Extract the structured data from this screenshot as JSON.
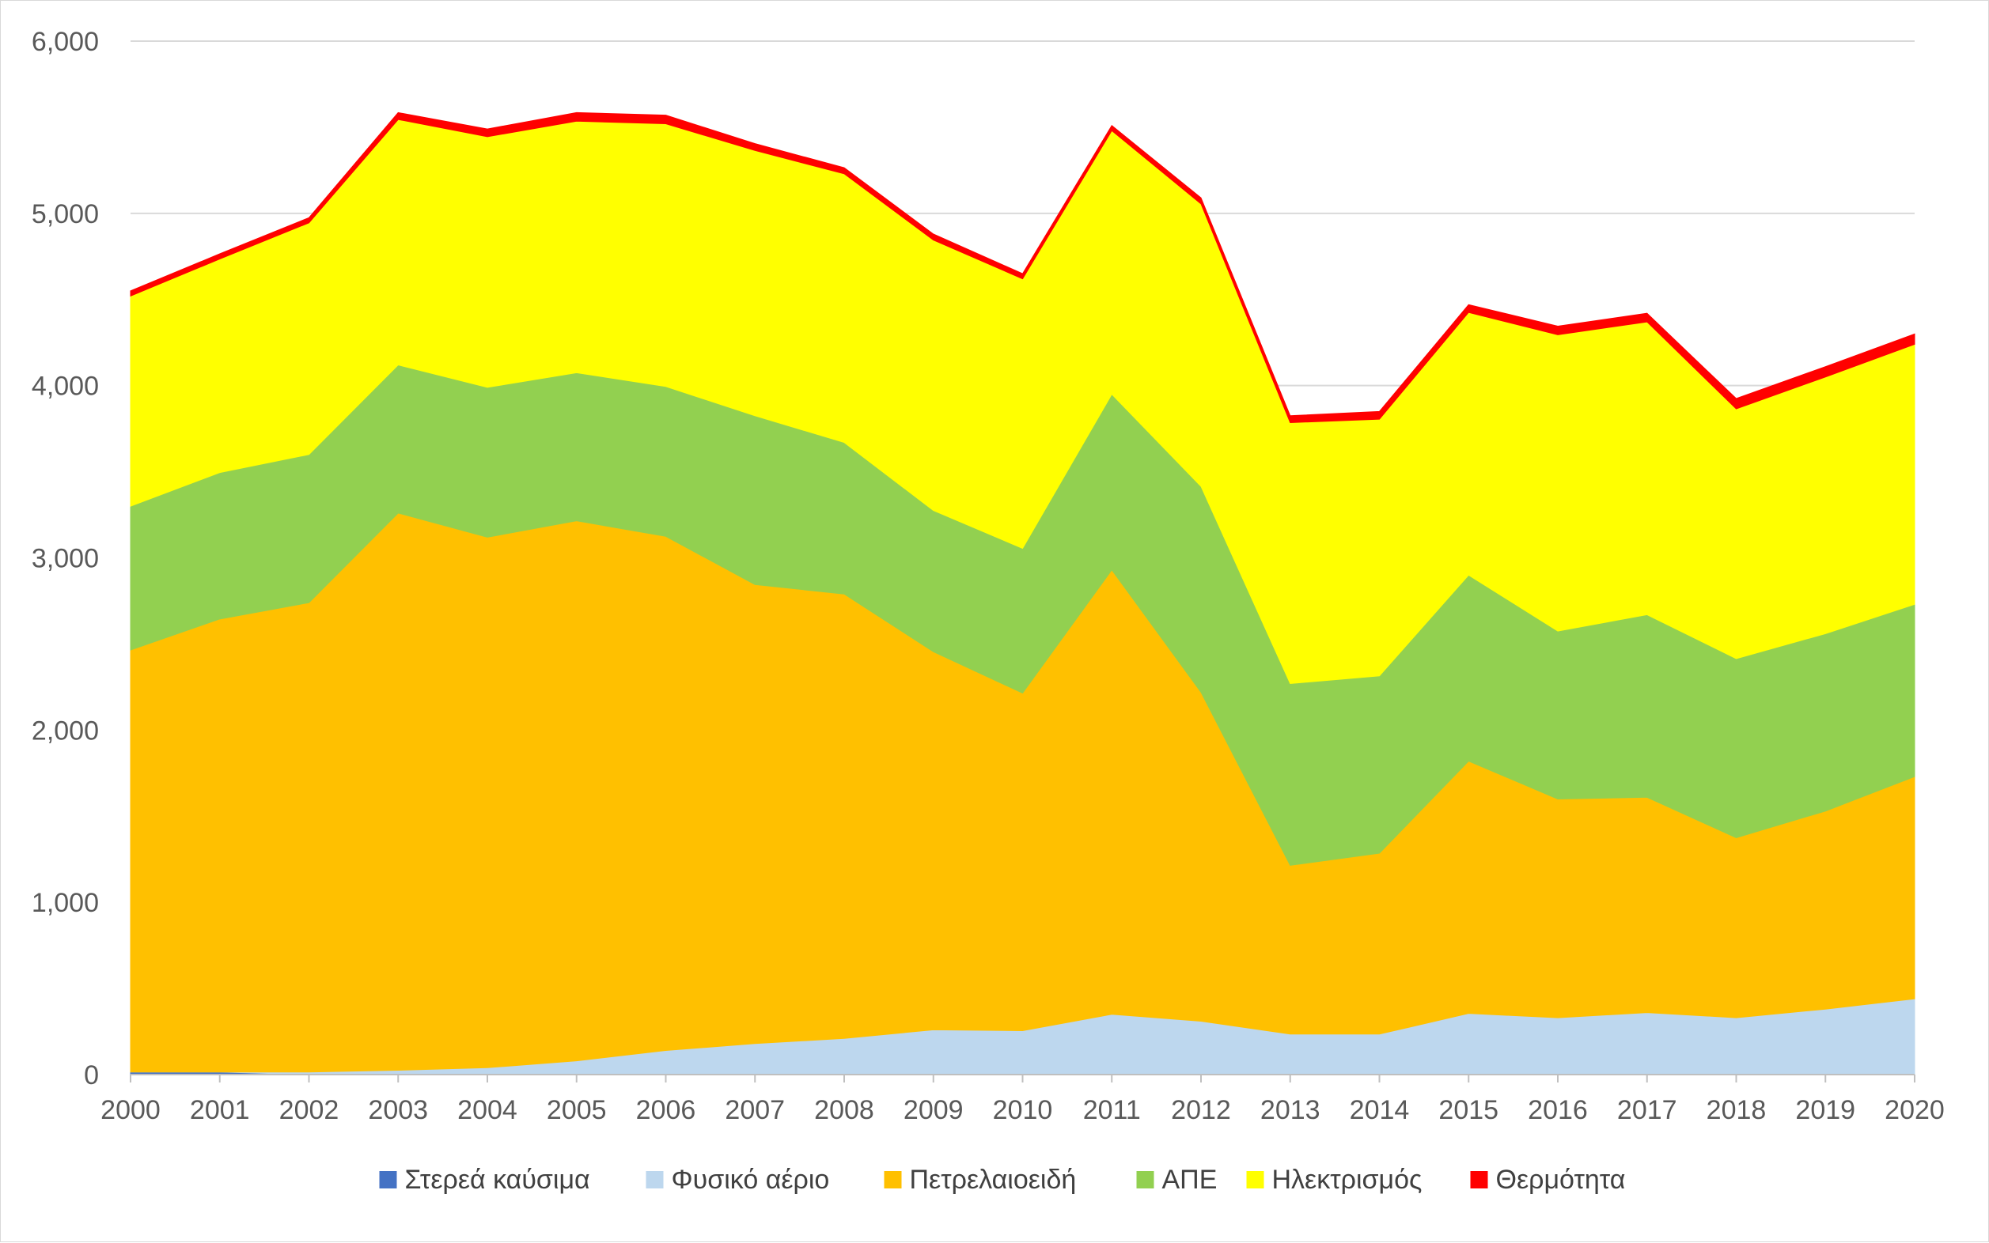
{
  "chart_data": {
    "type": "area",
    "stacked": true,
    "x": [
      "2000",
      "2001",
      "2002",
      "2003",
      "2004",
      "2005",
      "2006",
      "2007",
      "2008",
      "2009",
      "2010",
      "2011",
      "2012",
      "2013",
      "2014",
      "2015",
      "2016",
      "2017",
      "2018",
      "2019",
      "2020"
    ],
    "ylim": [
      0,
      6000
    ],
    "yticks": [
      0,
      1000,
      2000,
      3000,
      4000,
      5000,
      6000
    ],
    "ytick_labels": [
      "0",
      "1,000",
      "2,000",
      "3,000",
      "4,000",
      "5,000",
      "6,000"
    ],
    "grid": true,
    "legend_position": "bottom",
    "series": [
      {
        "name": "Στερεά καύσιμα",
        "color": "#4472c4",
        "values": [
          15,
          15,
          0,
          0,
          0,
          0,
          0,
          0,
          0,
          0,
          0,
          0,
          0,
          0,
          0,
          0,
          0,
          0,
          0,
          0,
          0
        ]
      },
      {
        "name": "Φυσικό αέριο",
        "color": "#bdd7ee",
        "values": [
          0,
          0,
          15,
          25,
          40,
          80,
          140,
          180,
          210,
          260,
          255,
          350,
          310,
          235,
          235,
          355,
          330,
          360,
          330,
          380,
          440
        ]
      },
      {
        "name": "Πετρελαιοειδή",
        "color": "#ffc000",
        "values": [
          2450,
          2630,
          2725,
          3235,
          3080,
          3135,
          2985,
          2665,
          2580,
          2195,
          1960,
          2580,
          1910,
          980,
          1050,
          1465,
          1270,
          1250,
          1045,
          1150,
          1290
        ]
      },
      {
        "name": "ΑΠΕ",
        "color": "#92d050",
        "values": [
          835,
          850,
          860,
          860,
          870,
          860,
          870,
          980,
          880,
          820,
          840,
          1020,
          1195,
          1055,
          1030,
          1080,
          975,
          1060,
          1040,
          1030,
          1000
        ]
      },
      {
        "name": "Ηλεκτρισμός",
        "color": "#ffff00",
        "values": [
          1220,
          1240,
          1345,
          1425,
          1455,
          1460,
          1525,
          1540,
          1560,
          1570,
          1565,
          1530,
          1640,
          1515,
          1490,
          1525,
          1720,
          1700,
          1450,
          1490,
          1510
        ]
      },
      {
        "name": "Θερμότητα",
        "color": "#ff0000",
        "values": [
          30,
          30,
          30,
          40,
          45,
          50,
          50,
          40,
          35,
          35,
          30,
          30,
          35,
          40,
          45,
          45,
          50,
          50,
          60,
          60,
          60
        ]
      }
    ]
  }
}
